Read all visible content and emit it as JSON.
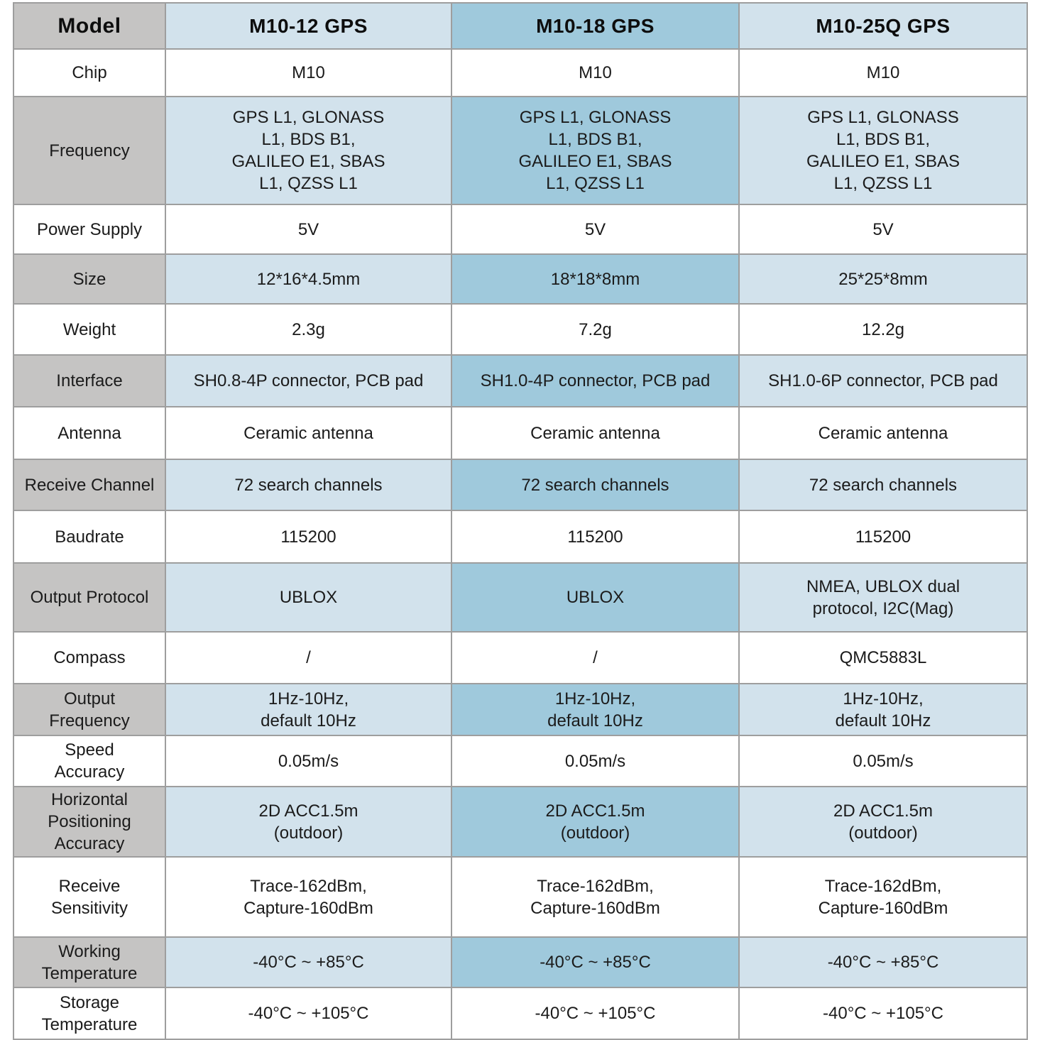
{
  "colors": {
    "label_gray": "#c5c4c3",
    "light_blue": "#d2e2ec",
    "highlight_blue": "#9fc9dc",
    "grid_line": "#9e9e9e",
    "text": "#1b1b1b"
  },
  "table": {
    "corner_label": "Model",
    "columns": [
      {
        "label": "M10-12 GPS",
        "highlight": false
      },
      {
        "label": "M10-18 GPS",
        "highlight": true
      },
      {
        "label": "M10-25Q GPS",
        "highlight": false
      }
    ],
    "rows": [
      {
        "label": "Chip",
        "shaded": false,
        "values": [
          "M10",
          "M10",
          "M10"
        ]
      },
      {
        "label": "Frequency",
        "shaded": true,
        "values": [
          "GPS L1, GLONASS\nL1, BDS B1,\nGALILEO E1, SBAS\nL1, QZSS L1",
          "GPS L1, GLONASS\nL1, BDS B1,\nGALILEO E1, SBAS\nL1, QZSS L1",
          "GPS L1, GLONASS\nL1, BDS B1,\nGALILEO E1, SBAS\nL1, QZSS L1"
        ]
      },
      {
        "label": "Power Supply",
        "shaded": false,
        "values": [
          "5V",
          "5V",
          "5V"
        ]
      },
      {
        "label": "Size",
        "shaded": true,
        "values": [
          "12*16*4.5mm",
          "18*18*8mm",
          "25*25*8mm"
        ]
      },
      {
        "label": "Weight",
        "shaded": false,
        "values": [
          "2.3g",
          "7.2g",
          "12.2g"
        ]
      },
      {
        "label": "Interface",
        "shaded": true,
        "values": [
          "SH0.8-4P connector, PCB pad",
          "SH1.0-4P connector, PCB pad",
          "SH1.0-6P connector, PCB pad"
        ]
      },
      {
        "label": "Antenna",
        "shaded": false,
        "values": [
          "Ceramic antenna",
          "Ceramic antenna",
          "Ceramic antenna"
        ]
      },
      {
        "label": "Receive Channel",
        "shaded": true,
        "values": [
          "72 search channels",
          "72 search channels",
          "72 search channels"
        ]
      },
      {
        "label": "Baudrate",
        "shaded": false,
        "values": [
          "115200",
          "115200",
          "115200"
        ]
      },
      {
        "label": "Output Protocol",
        "shaded": true,
        "values": [
          "UBLOX",
          "UBLOX",
          "NMEA, UBLOX dual\nprotocol, I2C(Mag)"
        ]
      },
      {
        "label": "Compass",
        "shaded": false,
        "values": [
          "/",
          "/",
          "QMC5883L"
        ]
      },
      {
        "label": "Output\nFrequency",
        "shaded": true,
        "values": [
          "1Hz-10Hz,\ndefault 10Hz",
          "1Hz-10Hz,\ndefault 10Hz",
          "1Hz-10Hz,\ndefault 10Hz"
        ]
      },
      {
        "label": "Speed\nAccuracy",
        "shaded": false,
        "values": [
          "0.05m/s",
          "0.05m/s",
          "0.05m/s"
        ]
      },
      {
        "label": "Horizontal\nPositioning\nAccuracy",
        "shaded": true,
        "values": [
          "2D ACC1.5m\n(outdoor)",
          "2D ACC1.5m\n(outdoor)",
          "2D ACC1.5m\n(outdoor)"
        ]
      },
      {
        "label": "Receive\nSensitivity",
        "shaded": false,
        "values": [
          "Trace-162dBm,\nCapture-160dBm",
          "Trace-162dBm,\nCapture-160dBm",
          "Trace-162dBm,\nCapture-160dBm"
        ]
      },
      {
        "label": "Working\nTemperature",
        "shaded": true,
        "values": [
          "-40°C ~ +85°C",
          "-40°C ~ +85°C",
          "-40°C ~ +85°C"
        ]
      },
      {
        "label": "Storage\nTemperature",
        "shaded": false,
        "values": [
          "-40°C ~ +105°C",
          "-40°C ~ +105°C",
          "-40°C ~ +105°C"
        ]
      }
    ]
  }
}
